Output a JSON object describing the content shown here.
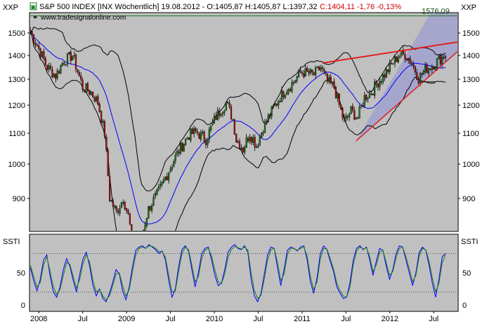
{
  "header": {
    "symbol_marker": "▣",
    "title": "S&P 500 INDEX [INX Wöchentlich] 19.08.2012 - O:1405,87 H:1405,87 L:1397,32",
    "close_text": "C:1404,11 -1,76 -0,13%",
    "watermark": "www.tradesignalonline.com",
    "level_label": "1576,09",
    "axis_tag_left": "XXP",
    "axis_tag_right": "XXP"
  },
  "indicator": {
    "name_left": "SSTI",
    "name_right": "SSTI"
  },
  "colors": {
    "background": "#c0c0c0",
    "candle_up": "#1a7a1a",
    "candle_down": "#b01010",
    "bollinger": "#000000",
    "sma": "#0000ff",
    "trend": "#e02020",
    "channel": "#8888dd",
    "ssti_k": "#0000ff",
    "ssti_d": "#1a7a1a",
    "level_line": "#1a7a1a"
  },
  "chart_data": [
    {
      "type": "candlestick",
      "title": "S&P 500 INDEX [INX Wöchentlich]",
      "y_ticks": [
        900,
        1000,
        1100,
        1200,
        1300,
        1400,
        1500
      ],
      "y_tick_labels": [
        "900",
        "1000",
        "1100",
        "1200",
        "1300",
        "1400",
        "1500"
      ],
      "ylim": [
        800,
        1600
      ],
      "x_tick_labels": [
        "2008",
        "Jul",
        "2009",
        "Jul",
        "2010",
        "Jul",
        "2011",
        "Jul",
        "2012",
        "Jul"
      ],
      "x_ticks_index": [
        5,
        31,
        57,
        83,
        109,
        135,
        161,
        187,
        213,
        239
      ],
      "x_total_weeks": 254,
      "anchors": [
        {
          "w": 0,
          "v": 1505
        },
        {
          "w": 5,
          "v": 1430
        },
        {
          "w": 10,
          "v": 1350
        },
        {
          "w": 15,
          "v": 1315
        },
        {
          "w": 20,
          "v": 1380
        },
        {
          "w": 25,
          "v": 1400
        },
        {
          "w": 31,
          "v": 1270
        },
        {
          "w": 36,
          "v": 1250
        },
        {
          "w": 40,
          "v": 1210
        },
        {
          "w": 44,
          "v": 1100
        },
        {
          "w": 47,
          "v": 900
        },
        {
          "w": 51,
          "v": 860
        },
        {
          "w": 55,
          "v": 900
        },
        {
          "w": 58,
          "v": 850
        },
        {
          "w": 62,
          "v": 735
        },
        {
          "w": 66,
          "v": 790
        },
        {
          "w": 70,
          "v": 870
        },
        {
          "w": 76,
          "v": 920
        },
        {
          "w": 82,
          "v": 980
        },
        {
          "w": 88,
          "v": 1045
        },
        {
          "w": 94,
          "v": 1095
        },
        {
          "w": 98,
          "v": 1105
        },
        {
          "w": 104,
          "v": 1080
        },
        {
          "w": 110,
          "v": 1160
        },
        {
          "w": 116,
          "v": 1210
        },
        {
          "w": 120,
          "v": 1150
        },
        {
          "w": 122,
          "v": 1080
        },
        {
          "w": 126,
          "v": 1050
        },
        {
          "w": 130,
          "v": 1100
        },
        {
          "w": 134,
          "v": 1060
        },
        {
          "w": 138,
          "v": 1120
        },
        {
          "w": 144,
          "v": 1190
        },
        {
          "w": 150,
          "v": 1250
        },
        {
          "w": 156,
          "v": 1290
        },
        {
          "w": 160,
          "v": 1330
        },
        {
          "w": 164,
          "v": 1325
        },
        {
          "w": 168,
          "v": 1320
        },
        {
          "w": 172,
          "v": 1350
        },
        {
          "w": 176,
          "v": 1290
        },
        {
          "w": 180,
          "v": 1270
        },
        {
          "w": 183,
          "v": 1200
        },
        {
          "w": 186,
          "v": 1140
        },
        {
          "w": 190,
          "v": 1180
        },
        {
          "w": 194,
          "v": 1155
        },
        {
          "w": 198,
          "v": 1230
        },
        {
          "w": 202,
          "v": 1250
        },
        {
          "w": 206,
          "v": 1290
        },
        {
          "w": 210,
          "v": 1320
        },
        {
          "w": 214,
          "v": 1360
        },
        {
          "w": 218,
          "v": 1400
        },
        {
          "w": 222,
          "v": 1405
        },
        {
          "w": 226,
          "v": 1370
        },
        {
          "w": 230,
          "v": 1305
        },
        {
          "w": 234,
          "v": 1340
        },
        {
          "w": 238,
          "v": 1360
        },
        {
          "w": 242,
          "v": 1380
        },
        {
          "w": 246,
          "v": 1404
        }
      ],
      "overlays": {
        "sma_period": 20,
        "bollinger_period": 20,
        "bollinger_width": 2.0,
        "resistance_line": {
          "w1": 173,
          "v1": 1368,
          "w2": 254,
          "v2": 1460
        },
        "support_line": {
          "w1": 193,
          "v1": 1075,
          "w2": 254,
          "v2": 1420
        },
        "horizontal_level": 1576.09,
        "projection_channel": [
          {
            "w": 193,
            "v": 1075
          },
          {
            "w": 254,
            "v": 1420
          },
          {
            "w": 254,
            "v": 1600
          },
          {
            "w": 238,
            "v": 1600
          }
        ],
        "support_marker": {
          "w": 234,
          "v": 1290
        }
      }
    },
    {
      "type": "line",
      "title": "SSTI",
      "y_ticks": [
        0,
        50
      ],
      "y_tick_labels": [
        "0",
        "50"
      ],
      "ylim": [
        -10,
        110
      ],
      "levels": [
        80,
        20
      ],
      "series": [
        {
          "values": [
            58,
            38,
            22,
            40,
            70,
            78,
            45,
            20,
            12,
            28,
            55,
            72,
            60,
            38,
            20,
            48,
            72,
            82,
            60,
            30,
            14,
            25,
            10,
            5,
            18,
            35,
            55,
            48,
            22,
            8,
            28,
            60,
            85,
            90,
            92,
            88,
            94,
            90,
            86,
            80,
            84,
            70,
            38,
            12,
            25,
            60,
            86,
            92,
            84,
            55,
            28,
            50,
            80,
            88,
            90,
            70,
            46,
            30,
            34,
            55,
            82,
            90,
            94,
            88,
            86,
            92,
            82,
            40,
            14,
            5,
            18,
            48,
            78,
            90,
            88,
            58,
            30,
            55,
            85,
            90,
            88,
            84,
            90,
            92,
            70,
            36,
            18,
            42,
            80,
            92,
            86,
            68,
            52,
            28,
            18,
            10,
            12,
            35,
            70,
            88,
            92,
            86,
            90,
            70,
            46,
            68,
            88,
            85,
            60,
            40,
            55,
            80,
            92,
            90,
            70,
            50,
            30,
            50,
            82,
            90,
            85,
            62,
            34,
            12,
            40,
            75,
            80
          ]
        },
        {
          "values": [
            62,
            44,
            28,
            35,
            62,
            75,
            52,
            28,
            16,
            24,
            46,
            66,
            63,
            44,
            26,
            40,
            65,
            78,
            66,
            38,
            20,
            24,
            14,
            8,
            14,
            30,
            48,
            50,
            30,
            14,
            24,
            52,
            78,
            88,
            90,
            88,
            92,
            91,
            88,
            83,
            83,
            74,
            46,
            20,
            22,
            52,
            80,
            90,
            86,
            62,
            36,
            44,
            72,
            85,
            88,
            76,
            54,
            36,
            33,
            48,
            74,
            86,
            91,
            89,
            87,
            90,
            85,
            50,
            22,
            10,
            15,
            40,
            70,
            86,
            88,
            66,
            38,
            48,
            78,
            88,
            88,
            85,
            88,
            90,
            76,
            44,
            24,
            36,
            72,
            88,
            87,
            72,
            56,
            34,
            22,
            14,
            12,
            28,
            62,
            84,
            90,
            87,
            89,
            75,
            52,
            62,
            82,
            85,
            66,
            46,
            52,
            74,
            88,
            90,
            75,
            56,
            36,
            46,
            76,
            88,
            86,
            68,
            42,
            20,
            34,
            66,
            78
          ]
        }
      ]
    }
  ]
}
